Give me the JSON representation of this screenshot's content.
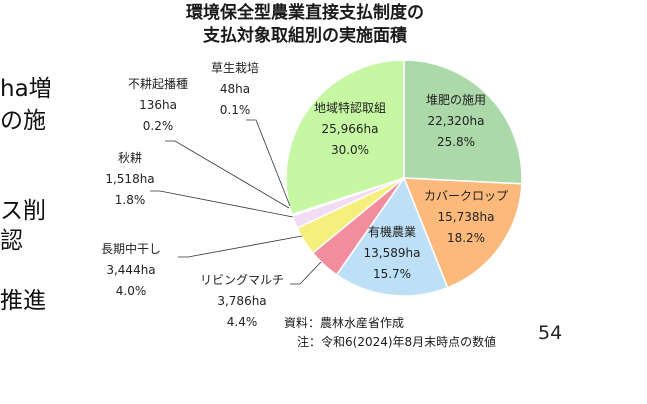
{
  "left_fragments": [
    "ha増",
    "の施",
    "ス削",
    "認",
    "推進"
  ],
  "chart_data": {
    "type": "pie",
    "title": "環境保全型農業直接支払制度の\n支払対象取組別の実施面積",
    "slices": [
      {
        "label": "堆肥の施用",
        "value": 22320,
        "value_label": "22,320ha",
        "pct_label": "25.8%",
        "color": "#acd9a9"
      },
      {
        "label": "カバークロップ",
        "value": 15738,
        "value_label": "15,738ha",
        "pct_label": "18.2%",
        "color": "#fbb97c"
      },
      {
        "label": "有機農業",
        "value": 13589,
        "value_label": "13,589ha",
        "pct_label": "15.7%",
        "color": "#bde0f7"
      },
      {
        "label": "リビングマルチ",
        "value": 3786,
        "value_label": "3,786ha",
        "pct_label": "4.4%",
        "color": "#f28d9d"
      },
      {
        "label": "長期中干し",
        "value": 3444,
        "value_label": "3,444ha",
        "pct_label": "4.0%",
        "color": "#f5f07e"
      },
      {
        "label": "秋耕",
        "value": 1518,
        "value_label": "1,518ha",
        "pct_label": "1.8%",
        "color": "#f1dcf3"
      },
      {
        "label": "不耕起播種",
        "value": 136,
        "value_label": "136ha",
        "pct_label": "0.2%",
        "color": "#9fc6e6"
      },
      {
        "label": "草生栽培",
        "value": 48,
        "value_label": "48ha",
        "pct_label": "0.1%",
        "color": "#d8d8d8"
      },
      {
        "label": "地域特認取組",
        "value": 25966,
        "value_label": "25,966ha",
        "pct_label": "30.0%",
        "color": "#c6f7a2"
      }
    ]
  },
  "source_note": "資料：農林水産省作成",
  "date_note": "注：令和6(2024)年8月末時点の数値",
  "page_number": "54"
}
